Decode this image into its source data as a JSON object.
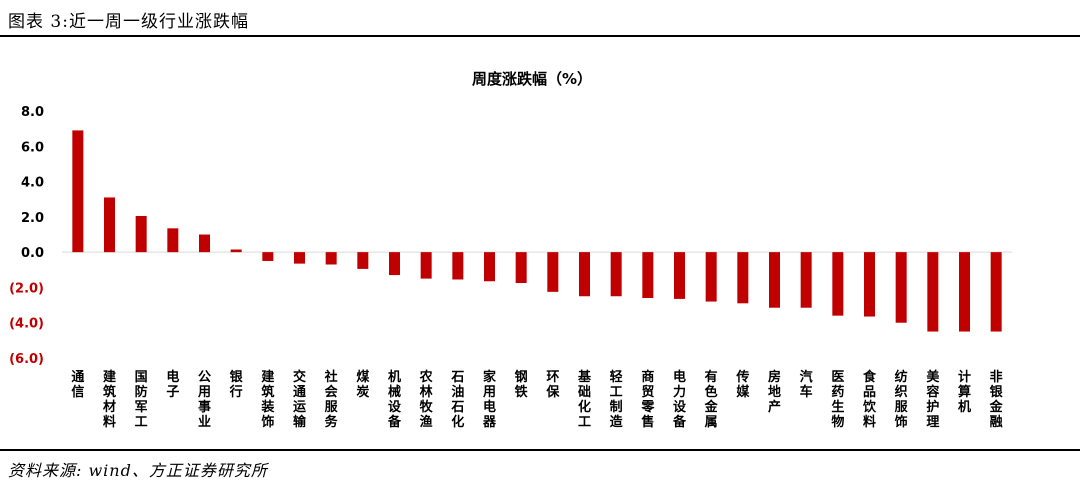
{
  "header": {
    "title": "图表 3:近一周一级行业涨跌幅"
  },
  "footer": {
    "source": "资料来源: wind、方正证券研究所"
  },
  "chart_data": {
    "type": "bar",
    "title": "周度涨跌幅（%）",
    "xlabel": "",
    "ylabel": "",
    "ylim": [
      -6,
      8
    ],
    "yticks": [
      8,
      6,
      4,
      2,
      0,
      -2,
      -4,
      -6
    ],
    "ytick_labels": [
      "8.0",
      "6.0",
      "4.0",
      "2.0",
      "0.0",
      "(2.0)",
      "(4.0)",
      "(6.0)"
    ],
    "negative_tick_color": "#c00000",
    "bar_color": "#c00000",
    "grid": false,
    "legend": "none",
    "categories": [
      "通信",
      "建筑材料",
      "国防军工",
      "电子",
      "公用事业",
      "银行",
      "建筑装饰",
      "交通运输",
      "社会服务",
      "煤炭",
      "机械设备",
      "农林牧渔",
      "石油石化",
      "家用电器",
      "钢铁",
      "环保",
      "基础化工",
      "轻工制造",
      "商贸零售",
      "电力设备",
      "有色金属",
      "传媒",
      "房地产",
      "汽车",
      "医药生物",
      "食品饮料",
      "纺织服饰",
      "美容护理",
      "计算机",
      "非银金融"
    ],
    "values": [
      6.9,
      3.1,
      2.05,
      1.35,
      1.0,
      0.15,
      -0.5,
      -0.65,
      -0.7,
      -0.95,
      -1.3,
      -1.5,
      -1.55,
      -1.65,
      -1.75,
      -2.25,
      -2.5,
      -2.5,
      -2.6,
      -2.65,
      -2.8,
      -2.9,
      -3.15,
      -3.15,
      -3.6,
      -3.65,
      -4.0,
      -4.5,
      -4.5,
      -4.5
    ]
  }
}
